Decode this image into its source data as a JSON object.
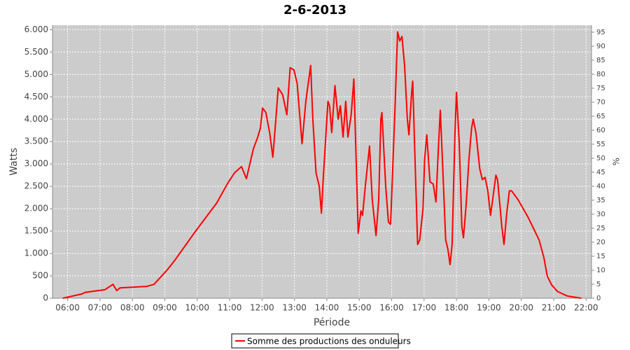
{
  "chart_data": {
    "type": "line",
    "title": "2-6-2013",
    "x_label": "Période",
    "y_label": "Watts",
    "y2_label": "%",
    "xlim": [
      "05:32",
      "22:10"
    ],
    "xticks": [
      "06:00",
      "07:00",
      "08:00",
      "09:00",
      "10:00",
      "11:00",
      "12:00",
      "13:00",
      "14:00",
      "15:00",
      "16:00",
      "17:00",
      "18:00",
      "19:00",
      "20:00",
      "21:00",
      "22:00"
    ],
    "ylim": [
      0,
      6100
    ],
    "yticks": [
      0,
      500,
      {
        "value": 1000,
        "label": "1.000"
      },
      {
        "value": 1500,
        "label": "1.500"
      },
      {
        "value": 2000,
        "label": "2.000"
      },
      {
        "value": 2500,
        "label": "2.500"
      },
      {
        "value": 3000,
        "label": "3.000"
      },
      {
        "value": 3500,
        "label": "3.500"
      },
      {
        "value": 4000,
        "label": "4.000"
      },
      {
        "value": 4500,
        "label": "4.500"
      },
      {
        "value": 5000,
        "label": "5.000"
      },
      {
        "value": 5500,
        "label": "5.500"
      },
      {
        "value": 6000,
        "label": "6.000"
      }
    ],
    "y2lim": [
      0,
      97.5
    ],
    "y2ticks": [
      0,
      5,
      10,
      15,
      20,
      25,
      30,
      35,
      40,
      45,
      50,
      55,
      60,
      65,
      70,
      75,
      80,
      85,
      90,
      95
    ],
    "grid": true,
    "legend": "bottom",
    "x": [
      "05:51",
      "06:27",
      "06:32",
      "07:09",
      "07:24",
      "07:31",
      "07:37",
      "08:27",
      "08:40",
      "09:05",
      "09:18",
      "09:57",
      "10:36",
      "10:56",
      "11:09",
      "11:22",
      "11:31",
      "11:44",
      "11:52",
      "11:57",
      "12:01",
      "12:07",
      "12:14",
      "12:20",
      "12:25",
      "12:30",
      "12:38",
      "12:46",
      "12:52",
      "12:59",
      "13:05",
      "13:14",
      "13:21",
      "13:30",
      "13:34",
      "13:40",
      "13:46",
      "13:50",
      "13:53",
      "14:02",
      "14:05",
      "14:09",
      "14:15",
      "14:21",
      "14:25",
      "14:30",
      "14:35",
      "14:39",
      "14:45",
      "14:50",
      "14:56",
      "14:58",
      "15:03",
      "15:06",
      "15:12",
      "15:19",
      "15:24",
      "15:31",
      "15:36",
      "15:40",
      "15:42",
      "15:49",
      "15:54",
      "15:58",
      "16:06",
      "16:11",
      "16:15",
      "16:19",
      "16:24",
      "16:29",
      "16:32",
      "16:37",
      "16:39",
      "16:43",
      "16:48",
      "16:52",
      "16:58",
      "17:01",
      "17:05",
      "17:11",
      "17:17",
      "17:22",
      "17:27",
      "17:30",
      "17:35",
      "17:40",
      "17:44",
      "17:48",
      "17:52",
      "17:57",
      "18:00",
      "18:05",
      "18:10",
      "18:13",
      "18:18",
      "18:23",
      "18:28",
      "18:31",
      "18:36",
      "18:43",
      "18:48",
      "18:53",
      "18:58",
      "19:03",
      "19:07",
      "19:13",
      "19:16",
      "19:24",
      "19:28",
      "19:33",
      "19:38",
      "19:42",
      "19:54",
      "20:13",
      "20:33",
      "20:42",
      "20:48",
      "20:56",
      "21:07",
      "21:25",
      "21:51"
    ],
    "series": [
      {
        "name": "Somme des productions des onduleurs",
        "color": "#ff0000",
        "values": [
          0,
          95,
          130,
          190,
          310,
          170,
          230,
          265,
          310,
          640,
          840,
          1500,
          2125,
          2560,
          2800,
          2940,
          2670,
          3340,
          3600,
          3800,
          4250,
          4150,
          3700,
          3150,
          3900,
          4700,
          4550,
          4100,
          5150,
          5100,
          4800,
          3450,
          4400,
          5200,
          4000,
          2800,
          2500,
          1900,
          2600,
          4400,
          4300,
          3700,
          4750,
          4000,
          4300,
          3600,
          4400,
          3600,
          4100,
          4900,
          2300,
          1450,
          1950,
          1850,
          2600,
          3400,
          2200,
          1400,
          2200,
          4000,
          4150,
          2500,
          1700,
          1650,
          4200,
          5950,
          5750,
          5850,
          5200,
          4000,
          3650,
          4600,
          4850,
          3200,
          1200,
          1300,
          2000,
          3100,
          3650,
          2600,
          2550,
          2150,
          3500,
          4200,
          2800,
          1300,
          1100,
          750,
          1200,
          3600,
          4600,
          3500,
          1600,
          1350,
          2100,
          3100,
          3800,
          4000,
          3700,
          2900,
          2650,
          2700,
          2400,
          1850,
          2200,
          2750,
          2650,
          1600,
          1200,
          1900,
          2400,
          2400,
          2200,
          1800,
          1300,
          900,
          500,
          300,
          150,
          50,
          0
        ]
      }
    ]
  }
}
